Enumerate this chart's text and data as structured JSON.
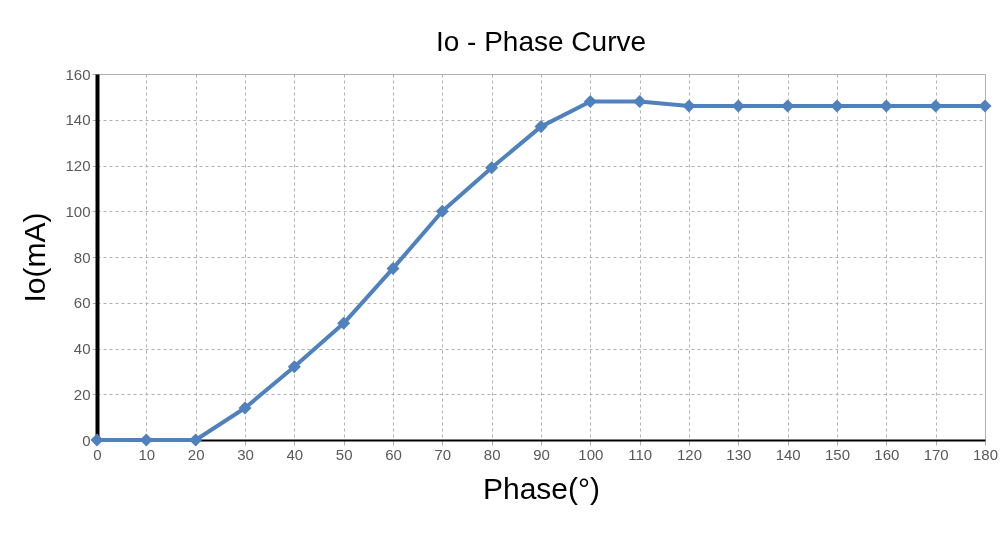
{
  "chart_data": {
    "type": "line",
    "title": "Io - Phase Curve",
    "xlabel": "Phase(°)",
    "ylabel": "Io(mA)",
    "x": [
      0,
      10,
      20,
      30,
      40,
      50,
      60,
      70,
      80,
      90,
      100,
      110,
      120,
      130,
      140,
      150,
      160,
      170,
      180
    ],
    "series": [
      {
        "color": "#4f81bd",
        "values": [
          0,
          0,
          0,
          14,
          32,
          51,
          75,
          100,
          119,
          137,
          148,
          148,
          146,
          146,
          146,
          146,
          146,
          146,
          146
        ]
      }
    ],
    "xlim": [
      0,
      180
    ],
    "xticks": [
      0,
      10,
      20,
      30,
      40,
      50,
      60,
      70,
      80,
      90,
      100,
      110,
      120,
      130,
      140,
      150,
      160,
      170,
      180
    ],
    "ylim": [
      0,
      160
    ],
    "yticks": [
      0,
      20,
      40,
      60,
      80,
      100,
      120,
      140,
      160
    ],
    "grid": true,
    "marker": "diamond",
    "line_style": "solid"
  }
}
